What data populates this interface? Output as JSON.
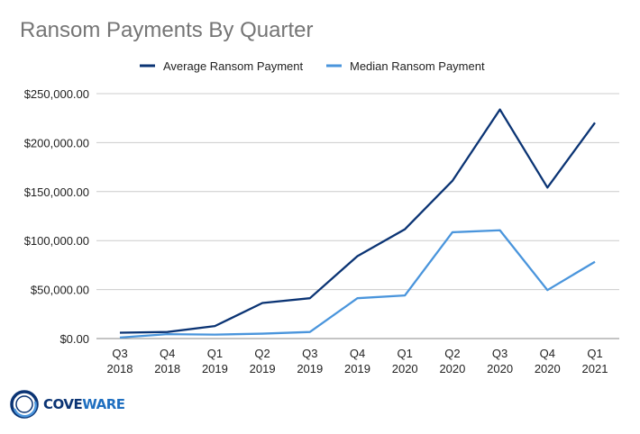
{
  "chart_data": {
    "type": "line",
    "title": "Ransom Payments By Quarter",
    "categories": [
      [
        "Q3",
        "2018"
      ],
      [
        "Q4",
        "2018"
      ],
      [
        "Q1",
        "2019"
      ],
      [
        "Q2",
        "2019"
      ],
      [
        "Q3",
        "2019"
      ],
      [
        "Q4",
        "2019"
      ],
      [
        "Q1",
        "2020"
      ],
      [
        "Q2",
        "2020"
      ],
      [
        "Q3",
        "2020"
      ],
      [
        "Q4",
        "2020"
      ],
      [
        "Q1",
        "2021"
      ]
    ],
    "series": [
      {
        "name": "Average Ransom Payment",
        "color": "#0b3474",
        "values": [
          5973,
          6733,
          12762,
          36295,
          41198,
          84116,
          111605,
          161000,
          233817,
          154108,
          220298
        ]
      },
      {
        "name": "Median Ransom Payment",
        "color": "#4a95dc",
        "values": [
          1000,
          4500,
          4000,
          5000,
          6700,
          41179,
          44021,
          108500,
          110532,
          49450,
          78398
        ]
      }
    ],
    "ylim": [
      0,
      250000
    ],
    "yticks": [
      "$0.00",
      "$50,000.00",
      "$100,000.00",
      "$150,000.00",
      "$200,000.00",
      "$250,000.00"
    ],
    "grid": true,
    "legend": "top"
  },
  "logo": {
    "text_dark": "COVE",
    "text_light": "WARE"
  }
}
